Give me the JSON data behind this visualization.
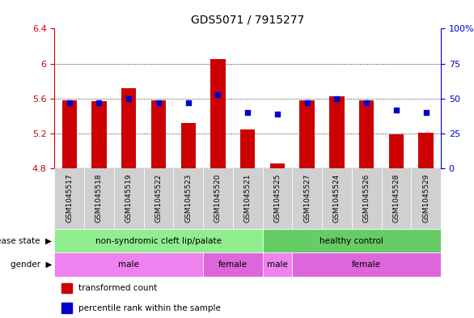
{
  "title": "GDS5071 / 7915277",
  "samples": [
    "GSM1045517",
    "GSM1045518",
    "GSM1045519",
    "GSM1045522",
    "GSM1045523",
    "GSM1045520",
    "GSM1045521",
    "GSM1045525",
    "GSM1045527",
    "GSM1045524",
    "GSM1045526",
    "GSM1045528",
    "GSM1045529"
  ],
  "bar_values": [
    5.58,
    5.57,
    5.72,
    5.58,
    5.32,
    6.05,
    5.25,
    4.86,
    5.58,
    5.63,
    5.58,
    5.19,
    5.21
  ],
  "blue_pct": [
    47,
    47,
    50,
    47,
    47,
    53,
    40,
    39,
    47,
    50,
    47,
    42,
    40
  ],
  "bar_color": "#cc0000",
  "blue_color": "#0000cc",
  "ylim_left": [
    4.8,
    6.4
  ],
  "ylim_right": [
    0,
    100
  ],
  "yticks_left": [
    4.8,
    5.2,
    5.6,
    6.0,
    6.4
  ],
  "ytick_labels_left": [
    "4.8",
    "5.2",
    "5.6",
    "6",
    "6.4"
  ],
  "yticks_right": [
    0,
    25,
    50,
    75,
    100
  ],
  "ytick_labels_right": [
    "0",
    "25",
    "50",
    "75",
    "100%"
  ],
  "grid_vals": [
    6.0,
    5.6,
    5.2
  ],
  "bar_width": 0.5,
  "tick_bg_color": "#d0d0d0",
  "plot_bg": "#ffffff",
  "disease_groups": [
    {
      "label": "non-syndromic cleft lip/palate",
      "start": 0,
      "end": 6,
      "color": "#90ee90"
    },
    {
      "label": "healthy control",
      "start": 7,
      "end": 12,
      "color": "#66cc66"
    }
  ],
  "gender_groups": [
    {
      "label": "male",
      "start": 0,
      "end": 4,
      "color": "#ee82ee"
    },
    {
      "label": "female",
      "start": 5,
      "end": 6,
      "color": "#dd66dd"
    },
    {
      "label": "male",
      "start": 7,
      "end": 7,
      "color": "#ee82ee"
    },
    {
      "label": "female",
      "start": 8,
      "end": 12,
      "color": "#dd66dd"
    }
  ]
}
